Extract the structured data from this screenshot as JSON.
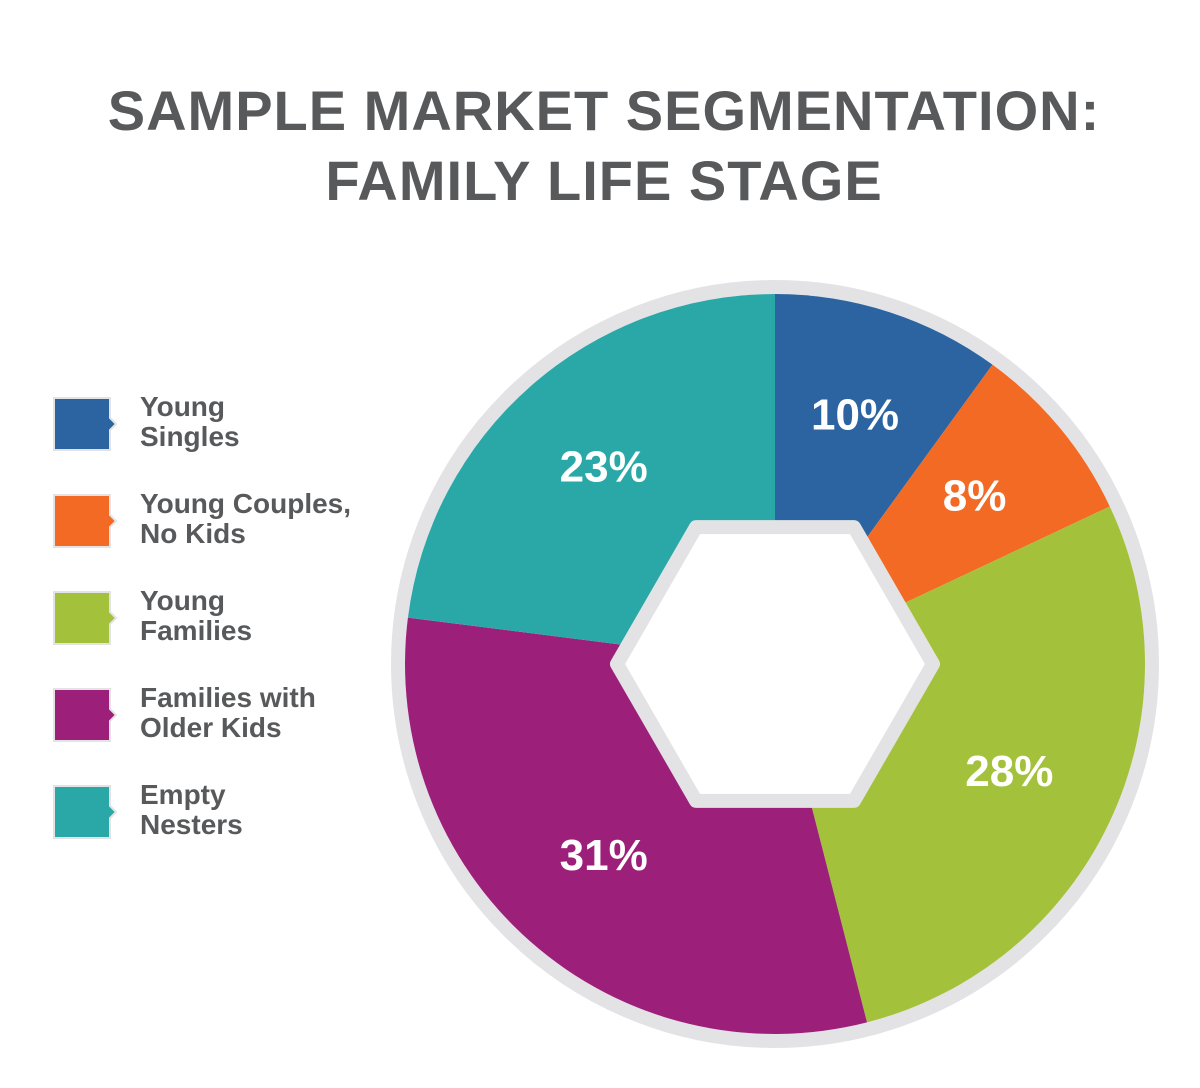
{
  "chart_data": {
    "type": "pie",
    "title": [
      "SAMPLE MARKET SEGMENTATION:",
      "FAMILY LIFE STAGE"
    ],
    "categories": [
      "Young Singles",
      "Young Couples, No Kids",
      "Young Families",
      "Families with Older Kids",
      "Empty Nesters"
    ],
    "values": [
      10,
      8,
      28,
      31,
      23
    ],
    "value_labels": [
      "10%",
      "8%",
      "28%",
      "31%",
      "23%"
    ],
    "colors": [
      "#2b64a0",
      "#f26a23",
      "#a3c13a",
      "#9c2079",
      "#2aa8a7"
    ],
    "legend": "left"
  }
}
